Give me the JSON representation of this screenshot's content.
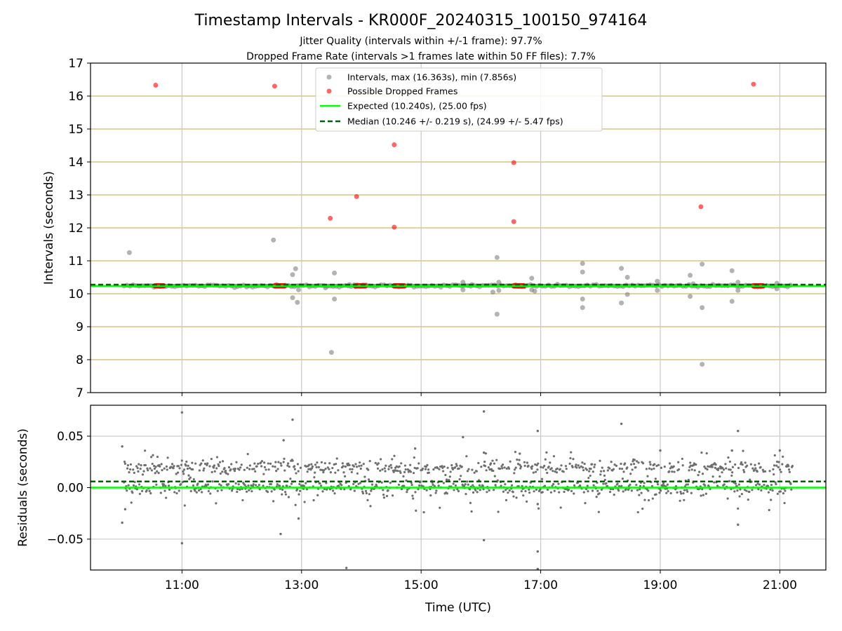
{
  "figure": {
    "title": "Timestamp Intervals - KR000F_20240315_100150_974164",
    "subtitle_1": "Jitter Quality (intervals within +/-1 frame): 97.7%",
    "subtitle_2": "Dropped Frame Rate (intervals >1 frames late within 50 FF files): 7.7%"
  },
  "colors": {
    "interval_points": "#808080",
    "dropped_points": "#ff0000",
    "expected_line": "#00ff00",
    "median_line": "#006400",
    "hgrid_top": "#d2b96b",
    "grid": "#c8c8c8",
    "residual_points": "#6e6e6e"
  },
  "chart_data": [
    {
      "type": "scatter",
      "panel": "intervals",
      "ylabel": "Intervals (seconds)",
      "ylim": [
        7,
        17
      ],
      "yticks": [
        7,
        8,
        9,
        10,
        11,
        12,
        13,
        14,
        15,
        16,
        17
      ],
      "xlim_hours": [
        9.47,
        21.77
      ],
      "xticks_hours": [
        11,
        13,
        15,
        17,
        19,
        21
      ],
      "grid": true,
      "legend_position": "top-center",
      "legend": [
        "Intervals, max (16.363s), min (7.856s)",
        "Possible Dropped Frames",
        "Expected (10.240s), (25.00 fps)",
        "Median (10.246 +/- 0.219 s), (24.99 +/- 5.47 fps)"
      ],
      "expected": 10.24,
      "median": 10.246,
      "band": {
        "x_start_hours": 10.03,
        "x_end_hours": 21.22,
        "y_low": 10.2,
        "y_high": 10.3
      },
      "series": [
        {
          "name": "Intervals, max (16.363s), min (7.856s)",
          "points": [
            [
              10.12,
              11.25
            ],
            [
              12.53,
              11.63
            ],
            [
              12.85,
              10.58
            ],
            [
              12.9,
              10.76
            ],
            [
              12.85,
              9.88
            ],
            [
              12.93,
              9.74
            ],
            [
              12.95,
              10.12
            ],
            [
              13.5,
              8.22
            ],
            [
              13.55,
              10.63
            ],
            [
              13.55,
              9.84
            ],
            [
              13.4,
              10.18
            ],
            [
              13.8,
              10.28
            ],
            [
              13.9,
              10.22
            ],
            [
              15.7,
              10.35
            ],
            [
              15.7,
              10.12
            ],
            [
              15.85,
              10.28
            ],
            [
              16.2,
              10.05
            ],
            [
              16.27,
              11.1
            ],
            [
              16.27,
              9.38
            ],
            [
              16.3,
              10.35
            ],
            [
              16.3,
              10.1
            ],
            [
              16.85,
              10.47
            ],
            [
              16.85,
              10.12
            ],
            [
              16.9,
              10.08
            ],
            [
              17.7,
              10.92
            ],
            [
              17.7,
              10.66
            ],
            [
              17.7,
              9.84
            ],
            [
              17.7,
              9.58
            ],
            [
              18.35,
              10.77
            ],
            [
              18.35,
              9.72
            ],
            [
              18.45,
              10.5
            ],
            [
              18.45,
              9.98
            ],
            [
              18.95,
              10.38
            ],
            [
              18.95,
              10.1
            ],
            [
              19.5,
              10.56
            ],
            [
              19.5,
              9.92
            ],
            [
              19.55,
              10.3
            ],
            [
              19.7,
              10.9
            ],
            [
              19.7,
              9.58
            ],
            [
              19.7,
              7.86
            ],
            [
              20.2,
              10.7
            ],
            [
              20.2,
              9.77
            ],
            [
              20.3,
              10.35
            ],
            [
              20.3,
              10.1
            ],
            [
              20.95,
              10.32
            ],
            [
              20.95,
              10.15
            ]
          ]
        },
        {
          "name": "Possible Dropped Frames",
          "points": [
            [
              10.56,
              16.33
            ],
            [
              12.55,
              16.3
            ],
            [
              13.48,
              12.29
            ],
            [
              13.92,
              12.95
            ],
            [
              14.55,
              14.52
            ],
            [
              14.55,
              12.02
            ],
            [
              16.55,
              13.98
            ],
            [
              16.55,
              12.19
            ],
            [
              19.68,
              12.64
            ],
            [
              20.56,
              16.36
            ]
          ],
          "clusters_hours": [
            [
              10.55,
              10.7
            ],
            [
              12.55,
              12.72
            ],
            [
              13.9,
              14.08
            ],
            [
              14.55,
              14.72
            ],
            [
              16.55,
              16.72
            ],
            [
              20.56,
              20.72
            ]
          ],
          "cluster_value": 10.24
        }
      ]
    },
    {
      "type": "scatter",
      "panel": "residuals",
      "xlabel": "Time (UTC)",
      "ylabel": "Residuals (seconds)",
      "ylim": [
        -0.08,
        0.08
      ],
      "yticks": [
        -0.05,
        0.0,
        0.05
      ],
      "ytick_labels": [
        "−0.05",
        "0.00",
        "0.05"
      ],
      "xticks_hours": [
        11,
        13,
        15,
        17,
        19,
        21
      ],
      "xtick_labels": [
        "11:00",
        "13:00",
        "15:00",
        "17:00",
        "19:00",
        "21:00"
      ],
      "expected_residual": 0.0,
      "median_residual": 0.006,
      "x_range_hours": [
        10.03,
        21.22
      ],
      "bands": [
        0.0,
        0.0195
      ],
      "band_spread": 0.006,
      "outliers": [
        [
          10.0,
          0.04
        ],
        [
          10.0,
          -0.034
        ],
        [
          10.05,
          -0.021
        ],
        [
          11.0,
          0.073
        ],
        [
          11.0,
          -0.054
        ],
        [
          12.85,
          0.066
        ],
        [
          12.7,
          0.046
        ],
        [
          12.65,
          -0.045
        ],
        [
          12.95,
          -0.03
        ],
        [
          13.75,
          -0.078
        ],
        [
          15.7,
          0.049
        ],
        [
          16.05,
          0.074
        ],
        [
          16.05,
          -0.051
        ],
        [
          16.05,
          0.034
        ],
        [
          16.95,
          0.055
        ],
        [
          16.95,
          -0.062
        ],
        [
          16.95,
          -0.079
        ],
        [
          16.95,
          -0.016
        ],
        [
          16.65,
          0.033
        ],
        [
          18.35,
          0.062
        ],
        [
          19.0,
          0.036
        ],
        [
          20.3,
          0.055
        ],
        [
          20.3,
          -0.036
        ],
        [
          20.2,
          0.036
        ],
        [
          21.0,
          0.036
        ],
        [
          14.9,
          0.038
        ]
      ]
    }
  ]
}
